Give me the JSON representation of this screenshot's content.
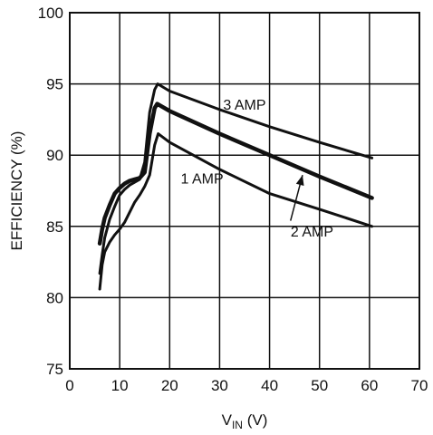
{
  "chart_data": {
    "type": "line",
    "xlabel_main": "V",
    "xlabel_sub": "IN",
    "xlabel_unit": " (V)",
    "ylabel": "EFFICIENCY (%)",
    "xlim": [
      0,
      70
    ],
    "ylim": [
      75,
      100
    ],
    "x_ticks": [
      0,
      10,
      20,
      30,
      40,
      50,
      60,
      70
    ],
    "y_ticks": [
      75,
      80,
      85,
      90,
      95,
      100
    ],
    "grid": true,
    "series": [
      {
        "name": "3 AMP",
        "points": [
          [
            6,
            81.7
          ],
          [
            6.5,
            83.0
          ],
          [
            7,
            84.2
          ],
          [
            8,
            85.5
          ],
          [
            9,
            86.4
          ],
          [
            10,
            87.2
          ],
          [
            11,
            87.6
          ],
          [
            12,
            87.9
          ],
          [
            13,
            88.1
          ],
          [
            14,
            88.3
          ],
          [
            15,
            89.5
          ],
          [
            16,
            93.0
          ],
          [
            17,
            94.6
          ],
          [
            17.6,
            95.0
          ],
          [
            20,
            94.5
          ],
          [
            30,
            93.2
          ],
          [
            40,
            92.0
          ],
          [
            50,
            90.9
          ],
          [
            60.5,
            89.8
          ]
        ]
      },
      {
        "name": "2 AMP",
        "points": [
          [
            6,
            83.8
          ],
          [
            6.5,
            84.8
          ],
          [
            7,
            85.6
          ],
          [
            8,
            86.5
          ],
          [
            9,
            87.3
          ],
          [
            10,
            87.7
          ],
          [
            11,
            88.0
          ],
          [
            12,
            88.2
          ],
          [
            13,
            88.3
          ],
          [
            14,
            88.4
          ],
          [
            15,
            88.8
          ],
          [
            16,
            91.5
          ],
          [
            17,
            93.3
          ],
          [
            17.5,
            93.6
          ],
          [
            20,
            93.1
          ],
          [
            30,
            91.5
          ],
          [
            40,
            90.0
          ],
          [
            50,
            88.5
          ],
          [
            60.5,
            87.0
          ]
        ]
      },
      {
        "name": "1 AMP",
        "points": [
          [
            6,
            80.6
          ],
          [
            6.5,
            82.3
          ],
          [
            7,
            83.2
          ],
          [
            8,
            83.9
          ],
          [
            9,
            84.4
          ],
          [
            10,
            84.8
          ],
          [
            11,
            85.3
          ],
          [
            12,
            86.0
          ],
          [
            13,
            86.7
          ],
          [
            14,
            87.2
          ],
          [
            15,
            87.8
          ],
          [
            16,
            88.6
          ],
          [
            17,
            90.7
          ],
          [
            17.7,
            91.5
          ],
          [
            20,
            90.9
          ],
          [
            30,
            89.0
          ],
          [
            40,
            87.3
          ],
          [
            50,
            86.2
          ],
          [
            60.5,
            85.0
          ]
        ]
      }
    ],
    "annotations": {
      "amp3": "3 AMP",
      "amp2": "2 AMP",
      "amp1": "1 AMP"
    }
  }
}
